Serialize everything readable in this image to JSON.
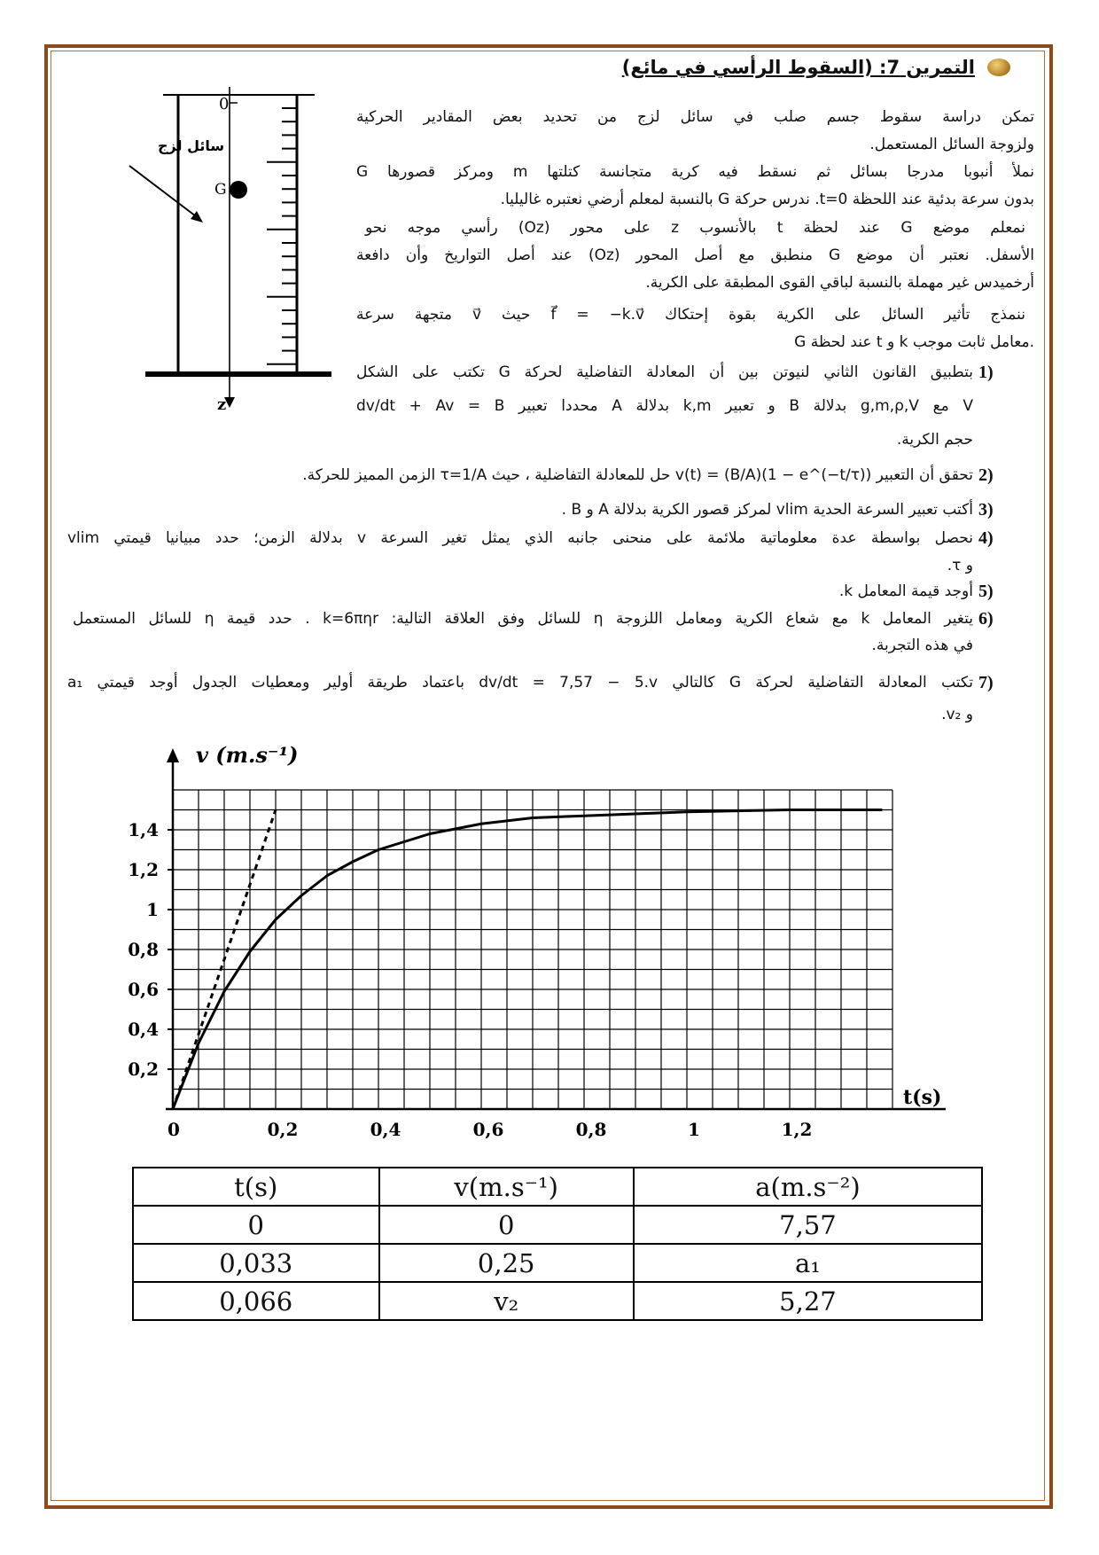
{
  "exercise": {
    "title": "التمرين 7: (السقوط الرأسي في مائع)",
    "icon": "gold-bullet-icon",
    "frame_color": "#8a4a1c"
  },
  "figure": {
    "liquid_label": "سائل لزج",
    "origin_label": "0",
    "center_label": "G",
    "axis_label": "z"
  },
  "intro": [
    "تمكن دراسة سقوط جسم صلب في سائل لزج من تحديد بعض المقادير الحركية",
    "ولزوجة السائل المستعمل.",
    "نملأ أنبوبا مدرجا بسائل ثم نسقط فيه كرية متجانسة كتلتها m ومركز قصورها G",
    "بدون سرعة بدئية عند اللحظة t=0. ندرس حركة G بالنسبة لمعلم أرضي نعتبره غاليليا.",
    "نمعلم موضع G عند لحظة t بالأنسوب z على محور (Oz) رأسي موجه نحو",
    "الأسفل. نعتبر أن موضع G منطبق مع أصل المحور (Oz) عند أصل التواريخ وأن دافعة",
    "أرخميدس غير مهملة بالنسبة لباقي القوى المطبقة على الكرية.",
    "ننمذج تأثير السائل على الكرية بقوة إحتكاك f⃗ = −k.v⃗ حيث v⃗ متجهة سرعة",
    "G عند لحظة t و k معامل ثابت موجب."
  ],
  "questions": [
    {
      "number": "1)",
      "lines": [
        "بتطبيق القانون الثاني لنيوتن بين أن المعادلة التفاضلية لحركة G تكتب على الشكل",
        "dv/dt + Av = B محددا تعبير A بدلالة k,m و تعبير B بدلالة g,m,ρ,V مع V",
        "حجم الكرية."
      ]
    },
    {
      "number": "2)",
      "lines": [
        "تحقق أن التعبير v(t) = (B/A)(1 − e^(−t/τ)) حل للمعادلة التفاضلية ، حيث τ=1/A الزمن المميز للحركة."
      ]
    },
    {
      "number": "3)",
      "lines": [
        "أكتب تعبير السرعة الحدية vlim لمركز قصور الكرية بدلالة A و B ."
      ]
    },
    {
      "number": "4)",
      "lines": [
        "نحصل بواسطة عدة معلوماتية ملائمة على منحنى جانبه الذي يمثل تغير السرعة v بدلالة الزمن؛ حدد مبيانيا قيمتي vlim",
        "و τ."
      ]
    },
    {
      "number": "5)",
      "lines": [
        "أوجد قيمة المعامل k."
      ]
    },
    {
      "number": "6)",
      "lines": [
        "يتغير المعامل k مع شعاع الكرية ومعامل اللزوجة η للسائل وفق العلاقة التالية: k=6πηr . حدد قيمة η للسائل المستعمل",
        "في هذه التجربة."
      ]
    },
    {
      "number": "7)",
      "lines": [
        "تكتب المعادلة التفاضلية لحركة G كالتالي dv/dt = 7,57 − 5.v باعتماد طريقة أولير ومعطيات الجدول أوجد قيمتي a₁",
        "و v₂."
      ]
    }
  ],
  "chart_data": {
    "type": "line",
    "xlabel": "t(s)",
    "ylabel": "v (m.s⁻¹)",
    "xlim": [
      0,
      1.4
    ],
    "ylim": [
      0,
      1.6
    ],
    "grid": true,
    "x_ticks": [
      "0",
      "0,2",
      "0,4",
      "0,6",
      "0,8",
      "1",
      "1,2"
    ],
    "x_tick_values": [
      0,
      0.2,
      0.4,
      0.6,
      0.8,
      1.0,
      1.2
    ],
    "y_ticks": [
      "0,2",
      "0,4",
      "0,6",
      "0,8",
      "1",
      "1,2",
      "1,4"
    ],
    "y_tick_values": [
      0.2,
      0.4,
      0.6,
      0.8,
      1.0,
      1.2,
      1.4
    ],
    "series": [
      {
        "style": "solid",
        "x": [
          0,
          0.05,
          0.1,
          0.15,
          0.2,
          0.25,
          0.3,
          0.35,
          0.4,
          0.5,
          0.6,
          0.7,
          0.8,
          0.9,
          1.0,
          1.2,
          1.38
        ],
        "y": [
          0,
          0.33,
          0.59,
          0.79,
          0.95,
          1.07,
          1.17,
          1.24,
          1.3,
          1.38,
          1.43,
          1.46,
          1.47,
          1.48,
          1.49,
          1.5,
          1.5
        ]
      },
      {
        "style": "dashed",
        "x": [
          0,
          0.2
        ],
        "y": [
          0,
          1.5
        ]
      }
    ]
  },
  "table": {
    "headers": [
      "t(s)",
      "v(m.s⁻¹)",
      "a(m.s⁻²)"
    ],
    "rows": [
      [
        "0",
        "0",
        "7,57"
      ],
      [
        "0,033",
        "0,25",
        "a₁"
      ],
      [
        "0,066",
        "v₂",
        "5,27"
      ]
    ]
  }
}
